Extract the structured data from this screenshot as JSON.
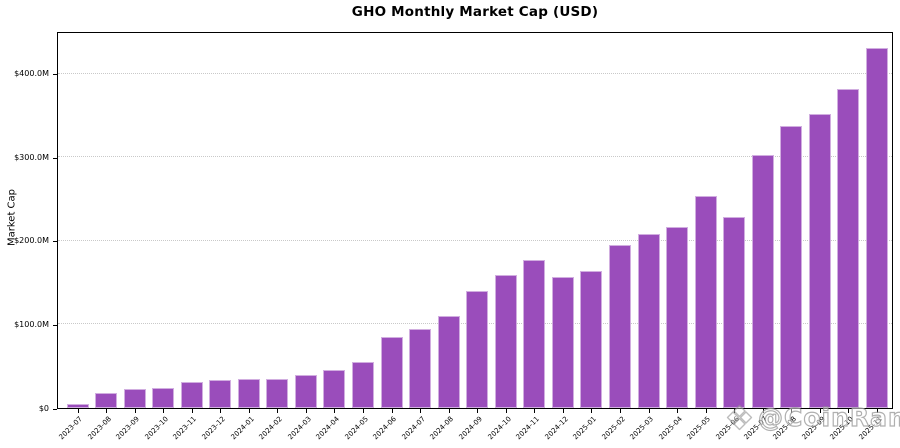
{
  "chart": {
    "title": "GHO Monthly Market Cap (USD)",
    "ylabel": "Market Cap"
  },
  "watermark": {
    "icon": "gem-icon",
    "text": "@CoinRank"
  },
  "chart_data": {
    "type": "bar",
    "title": "GHO Monthly Market Cap (USD)",
    "xlabel": "",
    "ylabel": "Market Cap",
    "unit": "USD millions",
    "categories": [
      "2023-07",
      "2023-08",
      "2023-09",
      "2023-10",
      "2023-11",
      "2023-12",
      "2024-01",
      "2024-02",
      "2024-03",
      "2024-04",
      "2024-05",
      "2024-06",
      "2024-07",
      "2024-08",
      "2024-09",
      "2024-10",
      "2024-11",
      "2024-12",
      "2025-01",
      "2025-02",
      "2025-03",
      "2025-04",
      "2025-05",
      "2025-06",
      "2025-07",
      "2025-08",
      "2025-09",
      "2025-10",
      "2025-11"
    ],
    "values": [
      5,
      18,
      23,
      24,
      31,
      34,
      35,
      35,
      39,
      45,
      55,
      85,
      95,
      110,
      140,
      159,
      177,
      157,
      164,
      195,
      208,
      216,
      254,
      229,
      302,
      337,
      352,
      382,
      430
    ],
    "y_ticks": [
      {
        "label": "$0",
        "value": 0
      },
      {
        "label": "$100.0M",
        "value": 100
      },
      {
        "label": "$200.0M",
        "value": 200
      },
      {
        "label": "$300.0M",
        "value": 300
      },
      {
        "label": "$400.0M",
        "value": 400
      }
    ],
    "ylim": [
      0,
      451
    ],
    "grid": "horizontal-dotted",
    "legend": "none",
    "bar_color": "#9A4DBB",
    "bar_edge_color": "rgba(255,255,255,0.55)",
    "grid_color": "#c9c9c9"
  }
}
